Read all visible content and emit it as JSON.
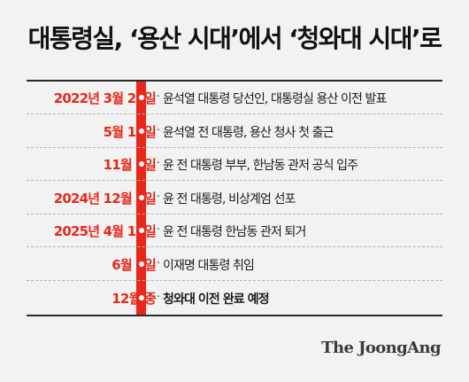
{
  "chart_data": {
    "type": "table",
    "title": "대통령실, ‘용산 시대’에서 ‘청와대 시대’로",
    "rows": [
      {
        "date": "2022년 3월 20일",
        "event": "윤석열 대통령 당선인, 대통령실 용산 이전 발표"
      },
      {
        "date": "5월 10일",
        "event": "윤석열 전 대통령, 용산 청사 첫 출근"
      },
      {
        "date": "11월 7일",
        "event": "윤 전 대통령 부부, 한남동 관저 공식 입주"
      },
      {
        "date": "2024년 12월 3일",
        "event": "윤 전 대통령, 비상계엄 선포"
      },
      {
        "date": "2025년 4월 11일",
        "event": "윤 전 대통령 한남동 관저 퇴거"
      },
      {
        "date": "6월 4일",
        "event": "이재명 대통령 취임"
      },
      {
        "date": "12월 중",
        "event": "청와대 이전 완료 예정",
        "emphasis": true
      }
    ]
  },
  "leader_text": "…",
  "source_logo": "The JoongAng",
  "colors": {
    "accent": "#e8281a",
    "background": "#f2f2f2",
    "text": "#1a1a1a",
    "rule": "#2b2b2b"
  }
}
